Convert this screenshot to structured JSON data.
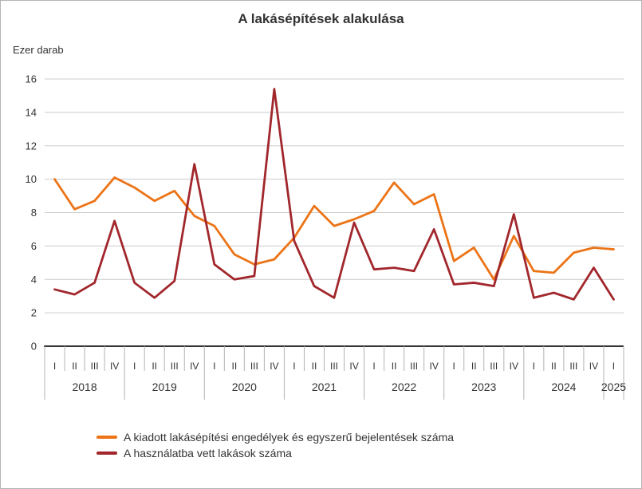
{
  "chart": {
    "title": "A lakásépítések alakulása",
    "unit_label": "Ezer darab",
    "colors": {
      "permits": "#ec7417",
      "completions": "#a1272c",
      "text": "#333333",
      "grid": "#cccccc",
      "axis": "#333333",
      "tick": "#b3b3b3"
    }
  },
  "chart_data": {
    "type": "line",
    "title": "A lakásépítések alakulása",
    "xlabel": "",
    "ylabel": "Ezer darab",
    "ylim": [
      0,
      16
    ],
    "yticks": [
      0,
      2,
      4,
      6,
      8,
      10,
      12,
      14,
      16
    ],
    "grid": true,
    "legend_position": "bottom-left",
    "years": [
      {
        "label": "2018",
        "quarters": [
          "I",
          "II",
          "III",
          "IV"
        ]
      },
      {
        "label": "2019",
        "quarters": [
          "I",
          "II",
          "III",
          "IV"
        ]
      },
      {
        "label": "2020",
        "quarters": [
          "I",
          "II",
          "III",
          "IV"
        ]
      },
      {
        "label": "2021",
        "quarters": [
          "I",
          "II",
          "III",
          "IV"
        ]
      },
      {
        "label": "2022",
        "quarters": [
          "I",
          "II",
          "III",
          "IV"
        ]
      },
      {
        "label": "2023",
        "quarters": [
          "I",
          "II",
          "III",
          "IV"
        ]
      },
      {
        "label": "2024",
        "quarters": [
          "I",
          "II",
          "III",
          "IV"
        ]
      },
      {
        "label": "2025",
        "quarters": [
          "I"
        ]
      }
    ],
    "categories": [
      "2018 I",
      "2018 II",
      "2018 III",
      "2018 IV",
      "2019 I",
      "2019 II",
      "2019 III",
      "2019 IV",
      "2020 I",
      "2020 II",
      "2020 III",
      "2020 IV",
      "2021 I",
      "2021 II",
      "2021 III",
      "2021 IV",
      "2022 I",
      "2022 II",
      "2022 III",
      "2022 IV",
      "2023 I",
      "2023 II",
      "2023 III",
      "2023 IV",
      "2024 I",
      "2024 II",
      "2024 III",
      "2024 IV",
      "2025 I"
    ],
    "series": [
      {
        "name": "A kiadott lakásépítési engedélyek és egyszerű bejelentések száma",
        "color": "#ec7417",
        "values": [
          10.0,
          8.2,
          8.7,
          10.1,
          9.5,
          8.7,
          9.3,
          7.8,
          7.2,
          5.5,
          4.9,
          5.2,
          6.5,
          8.4,
          7.2,
          7.6,
          8.1,
          9.8,
          8.5,
          9.1,
          5.1,
          5.9,
          4.0,
          6.6,
          4.5,
          4.4,
          5.6,
          5.9,
          5.8
        ]
      },
      {
        "name": "A használatba vett lakások száma",
        "color": "#a1272c",
        "values": [
          3.4,
          3.1,
          3.8,
          7.5,
          3.8,
          2.9,
          3.9,
          10.9,
          4.9,
          4.0,
          4.2,
          15.4,
          6.3,
          3.6,
          2.9,
          7.4,
          4.6,
          4.7,
          4.5,
          7.0,
          3.7,
          3.8,
          3.6,
          7.9,
          2.9,
          3.2,
          2.8,
          4.7,
          2.8
        ]
      }
    ]
  }
}
